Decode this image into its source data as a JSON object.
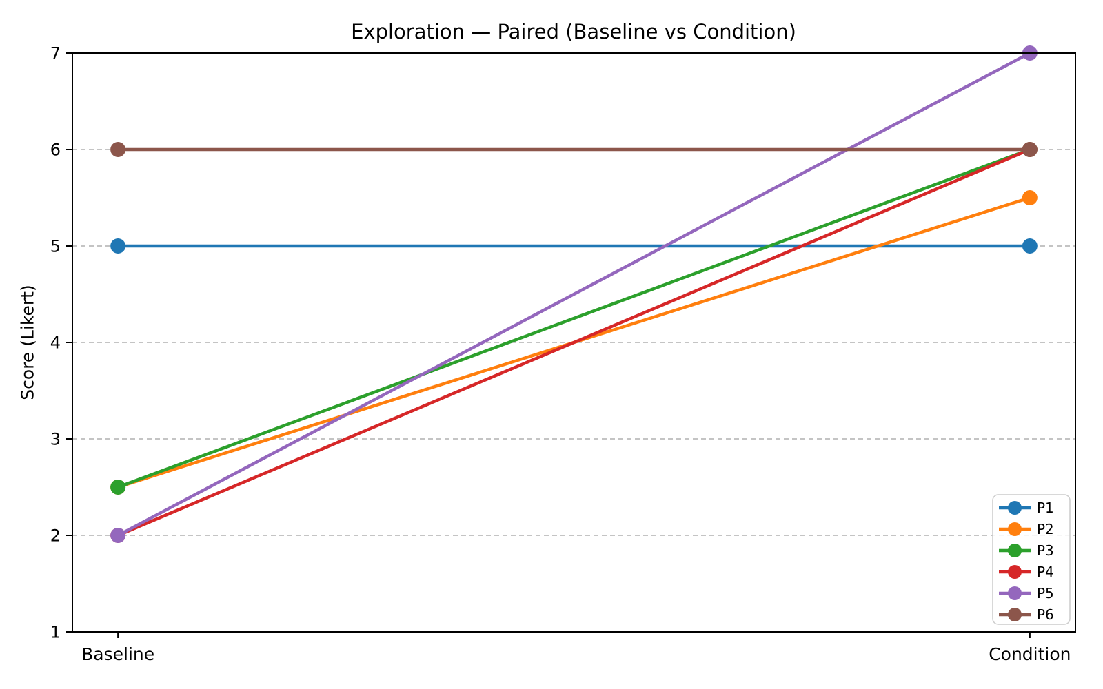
{
  "chart_data": {
    "type": "line",
    "title": "Exploration — Paired (Baseline vs Condition)",
    "xlabel": "",
    "ylabel": "Score (Likert)",
    "categories": [
      "Baseline",
      "Condition"
    ],
    "yticks": [
      "1",
      "2",
      "3",
      "4",
      "5",
      "6",
      "7"
    ],
    "ylim": [
      1,
      7
    ],
    "grid": "horizontal-dashed",
    "grid_color": "#b0b0b0",
    "axis_color": "#000000",
    "legend_position": "lower right",
    "series": [
      {
        "name": "P1",
        "color": "#1f77b4",
        "values": [
          5,
          5
        ]
      },
      {
        "name": "P2",
        "color": "#ff7f0e",
        "values": [
          2.5,
          5.5
        ]
      },
      {
        "name": "P3",
        "color": "#2ca02c",
        "values": [
          2.5,
          6
        ]
      },
      {
        "name": "P4",
        "color": "#d62728",
        "values": [
          2,
          6
        ]
      },
      {
        "name": "P5",
        "color": "#9467bd",
        "values": [
          2,
          7
        ]
      },
      {
        "name": "P6",
        "color": "#8c564b",
        "values": [
          6,
          6
        ]
      }
    ]
  }
}
